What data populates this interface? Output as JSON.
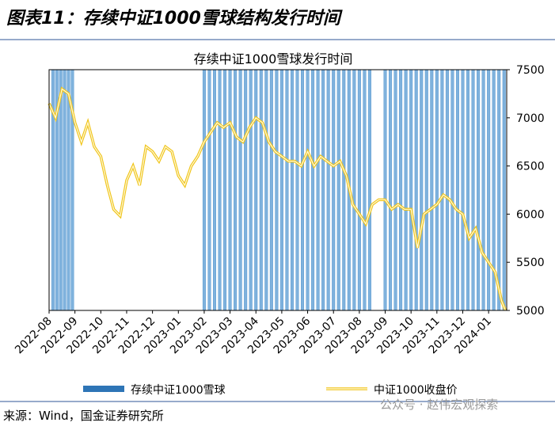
{
  "header": {
    "title": "图表11：存续中证1000雪球结构发行时间"
  },
  "chart_data": {
    "type": "bar-line",
    "title": "存续中证1000雪球发行时间",
    "xlim": [
      0,
      17.7
    ],
    "xticks": [
      {
        "value": 0,
        "label": "2022-08"
      },
      {
        "value": 1,
        "label": "2022-09"
      },
      {
        "value": 2,
        "label": "2022-10"
      },
      {
        "value": 3,
        "label": "2022-11"
      },
      {
        "value": 4,
        "label": "2022-12"
      },
      {
        "value": 5,
        "label": "2023-01"
      },
      {
        "value": 6,
        "label": "2023-02"
      },
      {
        "value": 7,
        "label": "2023-03"
      },
      {
        "value": 8,
        "label": "2023-04"
      },
      {
        "value": 9,
        "label": "2023-05"
      },
      {
        "value": 10,
        "label": "2023-06"
      },
      {
        "value": 11,
        "label": "2023-07"
      },
      {
        "value": 12,
        "label": "2023-08"
      },
      {
        "value": 13,
        "label": "2023-09"
      },
      {
        "value": 14,
        "label": "2023-10"
      },
      {
        "value": 15,
        "label": "2023-11"
      },
      {
        "value": 16,
        "label": "2023-12"
      },
      {
        "value": 17,
        "label": "2024-01"
      }
    ],
    "ylim": [
      5000,
      7500
    ],
    "yticks": [
      5000,
      5500,
      6000,
      6500,
      7000,
      7500
    ],
    "series": [
      {
        "name": "存续中证1000雪球",
        "type": "bar",
        "color": "#7fb2dd",
        "x": [
          0.15,
          0.3,
          0.45,
          0.6,
          0.75,
          0.9,
          6.0,
          6.2,
          6.4,
          6.6,
          6.8,
          7.0,
          7.2,
          7.4,
          7.6,
          7.8,
          8.0,
          8.2,
          8.4,
          8.6,
          8.8,
          9.0,
          9.2,
          9.4,
          9.6,
          9.8,
          10.0,
          10.2,
          10.4,
          10.6,
          10.8,
          11.0,
          11.2,
          11.4,
          11.6,
          11.8,
          12.0,
          12.2,
          12.4,
          13.0,
          13.2,
          13.4,
          13.6,
          13.8,
          14.0,
          14.2,
          14.4,
          14.6,
          14.8,
          15.0,
          15.2,
          15.4,
          15.6,
          15.8,
          16.0,
          16.2,
          16.4,
          16.6,
          16.8,
          17.0,
          17.2,
          17.4,
          17.6
        ],
        "values": [
          7500,
          7500,
          7500,
          7500,
          7500,
          7500,
          7500,
          7500,
          7500,
          7500,
          7500,
          7500,
          7500,
          7500,
          7500,
          7500,
          7500,
          7500,
          7500,
          7500,
          7500,
          7500,
          7500,
          7500,
          7500,
          7500,
          7500,
          7500,
          7500,
          7500,
          7500,
          7500,
          7500,
          7500,
          7500,
          7500,
          7500,
          7500,
          7500,
          7500,
          7500,
          7500,
          7500,
          7500,
          7500,
          7500,
          7500,
          7500,
          7500,
          7500,
          7500,
          7500,
          7500,
          7500,
          7500,
          7500,
          7500,
          7500,
          7500,
          7500,
          7500,
          7500,
          7500
        ]
      },
      {
        "name": "中证1000收盘价",
        "type": "line",
        "color": "#f0c419",
        "x": [
          0,
          0.25,
          0.5,
          0.75,
          1.0,
          1.25,
          1.5,
          1.75,
          2.0,
          2.25,
          2.5,
          2.75,
          3.0,
          3.25,
          3.5,
          3.75,
          4.0,
          4.25,
          4.5,
          4.75,
          5.0,
          5.25,
          5.5,
          5.75,
          6.0,
          6.25,
          6.5,
          6.75,
          7.0,
          7.25,
          7.5,
          7.75,
          8.0,
          8.25,
          8.5,
          8.75,
          9.0,
          9.25,
          9.5,
          9.75,
          10.0,
          10.25,
          10.5,
          10.75,
          11.0,
          11.25,
          11.5,
          11.75,
          12.0,
          12.25,
          12.5,
          12.75,
          13.0,
          13.25,
          13.5,
          13.75,
          14.0,
          14.25,
          14.5,
          14.75,
          15.0,
          15.25,
          15.5,
          15.75,
          16.0,
          16.25,
          16.5,
          16.75,
          17.0,
          17.25,
          17.5,
          17.65
        ],
        "values": [
          7150,
          7000,
          7300,
          7250,
          6950,
          6750,
          6950,
          6700,
          6600,
          6300,
          6050,
          5980,
          6350,
          6500,
          6300,
          6700,
          6650,
          6550,
          6700,
          6650,
          6400,
          6300,
          6500,
          6600,
          6750,
          6850,
          6950,
          6900,
          6950,
          6800,
          6750,
          6900,
          7000,
          6950,
          6750,
          6650,
          6600,
          6550,
          6550,
          6500,
          6650,
          6500,
          6600,
          6550,
          6500,
          6550,
          6400,
          6100,
          6000,
          5900,
          6100,
          6150,
          6150,
          6050,
          6100,
          6050,
          6050,
          5650,
          6000,
          6050,
          6100,
          6200,
          6150,
          6050,
          6000,
          5750,
          5850,
          5600,
          5500,
          5400,
          5100,
          5000
        ]
      }
    ]
  },
  "footer": {
    "source": "来源：Wind，国金证券研究所",
    "watermark": "公众号 · 赵伟宏观探索"
  }
}
